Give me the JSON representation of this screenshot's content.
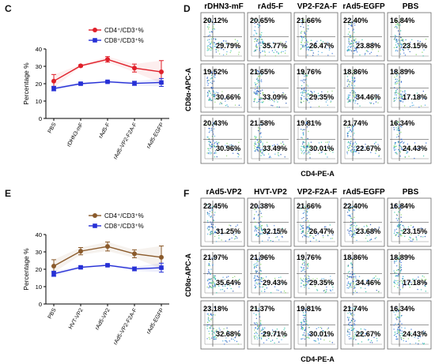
{
  "panels": {
    "C": "C",
    "D": "D",
    "E": "E",
    "F": "F"
  },
  "chart_data": [
    {
      "panel": "C",
      "type": "line",
      "ylabel": "Percentage %",
      "xlabel": "",
      "ylim": [
        0,
        40
      ],
      "yticks": [
        "0",
        "10",
        "20",
        "30",
        "40"
      ],
      "categories": [
        "PBS",
        "rDHN3-mF",
        "rAd5-F",
        "rAd5-VP2-F2A-F",
        "rAd5-EGFP"
      ],
      "legend": [
        "CD4⁺/CD3⁺%",
        "CD8⁺/CD3⁺%"
      ],
      "legend_position": "top-right",
      "colors": [
        "#e0202a",
        "#2630d6"
      ],
      "series": [
        {
          "name": "CD4⁺/CD3⁺%",
          "values": [
            21.5,
            30.3,
            34.0,
            29.0,
            26.8
          ],
          "errors": [
            3.8,
            0.6,
            1.6,
            2.3,
            6.5
          ]
        },
        {
          "name": "CD8⁺/CD3⁺%",
          "values": [
            17.2,
            20.0,
            21.1,
            20.2,
            20.7
          ],
          "errors": [
            1.3,
            0.6,
            0.5,
            1.2,
            2.3
          ]
        }
      ]
    },
    {
      "panel": "E",
      "type": "line",
      "ylabel": "Percentage %",
      "xlabel": "",
      "ylim": [
        0,
        40
      ],
      "yticks": [
        "0",
        "10",
        "20",
        "30",
        "40"
      ],
      "categories": [
        "PBS",
        "HVT-VP2",
        "rAd5-VP2",
        "rAd5-VP2-F2A-F",
        "rAd5-EGFP"
      ],
      "legend": [
        "CD4⁺/CD3⁺%",
        "CD8⁺/CD3⁺%"
      ],
      "legend_position": "top-right",
      "colors": [
        "#8a5a2b",
        "#2630d6"
      ],
      "series": [
        {
          "name": "CD4⁺/CD3⁺%",
          "values": [
            21.8,
            30.4,
            33.1,
            28.9,
            26.9
          ],
          "errors": [
            3.7,
            2.1,
            2.6,
            2.3,
            6.5
          ]
        },
        {
          "name": "CD8⁺/CD3⁺%",
          "values": [
            17.4,
            21.1,
            22.3,
            20.2,
            20.9
          ],
          "errors": [
            1.5,
            0.7,
            0.5,
            1.1,
            2.6
          ]
        }
      ]
    },
    {
      "panel": "D",
      "type": "table",
      "xlabel": "CD4-PE-A",
      "ylabel": "CD8α-APC-A",
      "columns": [
        "rDHN3-mF",
        "rAd5-F",
        "VP2-F2A-F",
        "rAd5-EGFP",
        "PBS"
      ],
      "rows": [
        [
          [
            "20.12%",
            "29.79%"
          ],
          [
            "20.65%",
            "35.77%"
          ],
          [
            "21.66%",
            "26.47%"
          ],
          [
            "22.40%",
            "23.88%"
          ],
          [
            "16.84%",
            "23.15%"
          ]
        ],
        [
          [
            "19.52%",
            "30.66%"
          ],
          [
            "21.65%",
            "33.09%"
          ],
          [
            "19.76%",
            "29.35%"
          ],
          [
            "18.86%",
            "34.46%"
          ],
          [
            "18.89%",
            "17.18%"
          ]
        ],
        [
          [
            "20.43%",
            "30.96%"
          ],
          [
            "21.58%",
            "33.49%"
          ],
          [
            "19.81%",
            "30.01%"
          ],
          [
            "21.74%",
            "22.67%"
          ],
          [
            "16.34%",
            "24.43%"
          ]
        ]
      ]
    },
    {
      "panel": "F",
      "type": "table",
      "xlabel": "CD4-PE-A",
      "ylabel": "CD8α-APC-A",
      "columns": [
        "rAd5-VP2",
        "HVT-VP2",
        "VP2-F2A-F",
        "rAd5-EGFP",
        "PBS"
      ],
      "rows": [
        [
          [
            "22.45%",
            "31.25%"
          ],
          [
            "20.38%",
            "32.15%"
          ],
          [
            "21.66%",
            "26.47%"
          ],
          [
            "22.40%",
            "23.68%"
          ],
          [
            "16.84%",
            "23.15%"
          ]
        ],
        [
          [
            "21.97%",
            "35.64%"
          ],
          [
            "21.96%",
            "29.43%"
          ],
          [
            "19.76%",
            "29.35%"
          ],
          [
            "18.86%",
            "34.46%"
          ],
          [
            "18.89%",
            "17.18%"
          ]
        ],
        [
          [
            "23.18%",
            "32.68%"
          ],
          [
            "21.37%",
            "29.71%"
          ],
          [
            "19.81%",
            "30.01%"
          ],
          [
            "21.74%",
            "22.67%"
          ],
          [
            "16.34%",
            "24.43%"
          ]
        ]
      ]
    }
  ]
}
